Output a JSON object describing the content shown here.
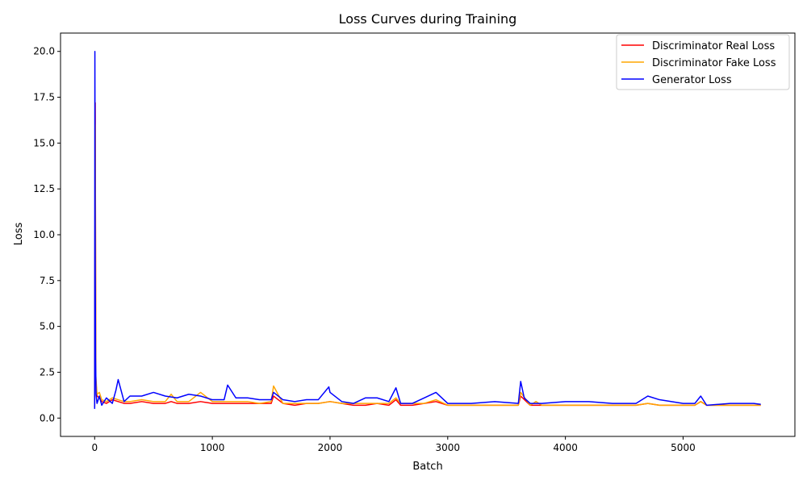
{
  "chart_data": {
    "type": "line",
    "title": "Loss Curves during Training",
    "xlabel": "Batch",
    "ylabel": "Loss",
    "xlim": [
      -290,
      5950
    ],
    "ylim": [
      -1.0,
      21.0
    ],
    "xticks": [
      0,
      1000,
      2000,
      3000,
      4000,
      5000
    ],
    "xtick_labels": [
      "0",
      "1000",
      "2000",
      "3000",
      "4000",
      "5000"
    ],
    "yticks": [
      0.0,
      2.5,
      5.0,
      7.5,
      10.0,
      12.5,
      15.0,
      17.5,
      20.0
    ],
    "ytick_labels": [
      "0.0",
      "2.5",
      "5.0",
      "7.5",
      "10.0",
      "12.5",
      "15.0",
      "17.5",
      "20.0"
    ],
    "grid": false,
    "legend_position": "top-right",
    "series": [
      {
        "name": "Discriminator Real Loss",
        "color": "#ff0000",
        "x": [
          0,
          5,
          10,
          20,
          40,
          60,
          100,
          150,
          200,
          250,
          300,
          400,
          500,
          600,
          650,
          700,
          800,
          900,
          1000,
          1100,
          1200,
          1300,
          1400,
          1500,
          1520,
          1600,
          1700,
          1800,
          1900,
          2000,
          2100,
          2200,
          2300,
          2400,
          2500,
          2560,
          2600,
          2700,
          2800,
          2900,
          3000,
          3200,
          3400,
          3600,
          3620,
          3700,
          3800,
          4000,
          4200,
          4400,
          4600,
          4700,
          4800,
          5000,
          5100,
          5150,
          5200,
          5400,
          5600,
          5660
        ],
        "y": [
          0.6,
          17.2,
          2.0,
          1.2,
          1.1,
          0.9,
          0.8,
          1.0,
          0.9,
          0.8,
          0.8,
          0.9,
          0.8,
          0.8,
          0.9,
          0.8,
          0.8,
          0.9,
          0.8,
          0.8,
          0.8,
          0.8,
          0.8,
          0.8,
          1.2,
          0.8,
          0.7,
          0.8,
          0.8,
          0.9,
          0.8,
          0.7,
          0.7,
          0.8,
          0.7,
          1.0,
          0.7,
          0.7,
          0.8,
          0.9,
          0.7,
          0.7,
          0.7,
          0.7,
          1.2,
          0.7,
          0.7,
          0.7,
          0.7,
          0.7,
          0.7,
          0.8,
          0.7,
          0.7,
          0.7,
          0.9,
          0.7,
          0.7,
          0.7,
          0.7
        ]
      },
      {
        "name": "Discriminator Fake Loss",
        "color": "#ffa500",
        "x": [
          0,
          5,
          10,
          20,
          40,
          60,
          100,
          150,
          200,
          250,
          300,
          400,
          500,
          600,
          650,
          700,
          800,
          900,
          1000,
          1100,
          1200,
          1300,
          1400,
          1500,
          1520,
          1600,
          1700,
          1800,
          1900,
          2000,
          2100,
          2200,
          2300,
          2400,
          2500,
          2560,
          2600,
          2700,
          2800,
          2900,
          3000,
          3200,
          3400,
          3600,
          3620,
          3700,
          3750,
          3800,
          4000,
          4200,
          4400,
          4600,
          4700,
          4800,
          5000,
          5100,
          5150,
          5200,
          5400,
          5600,
          5660
        ],
        "y": [
          0.7,
          16.0,
          2.3,
          1.3,
          1.4,
          1.0,
          0.9,
          1.1,
          1.0,
          0.9,
          0.9,
          1.0,
          0.9,
          0.9,
          1.3,
          0.9,
          0.9,
          1.4,
          0.9,
          0.9,
          0.9,
          0.9,
          0.8,
          0.9,
          1.75,
          0.8,
          0.8,
          0.8,
          0.8,
          0.9,
          0.8,
          0.8,
          0.8,
          0.8,
          0.8,
          1.1,
          0.8,
          0.8,
          0.8,
          1.0,
          0.7,
          0.7,
          0.7,
          0.7,
          1.4,
          0.7,
          0.9,
          0.7,
          0.7,
          0.7,
          0.7,
          0.7,
          0.8,
          0.7,
          0.7,
          0.7,
          0.9,
          0.7,
          0.7,
          0.7,
          0.7
        ]
      },
      {
        "name": "Generator Loss",
        "color": "#0000ff",
        "x": [
          0,
          2,
          5,
          8,
          12,
          20,
          40,
          60,
          100,
          150,
          180,
          200,
          250,
          300,
          400,
          500,
          600,
          700,
          800,
          900,
          1000,
          1100,
          1130,
          1200,
          1300,
          1400,
          1500,
          1520,
          1600,
          1700,
          1800,
          1900,
          1990,
          2000,
          2100,
          2200,
          2300,
          2400,
          2500,
          2560,
          2600,
          2700,
          2800,
          2900,
          3000,
          3200,
          3400,
          3600,
          3620,
          3650,
          3700,
          3800,
          4000,
          4200,
          4400,
          4600,
          4700,
          4800,
          5000,
          5100,
          5150,
          5200,
          5400,
          5600,
          5660
        ],
        "y": [
          0.5,
          20.0,
          8.0,
          3.3,
          1.3,
          0.8,
          1.2,
          0.7,
          1.1,
          0.8,
          1.5,
          2.1,
          0.9,
          1.2,
          1.2,
          1.4,
          1.2,
          1.1,
          1.3,
          1.2,
          1.0,
          1.0,
          1.8,
          1.1,
          1.1,
          1.0,
          1.0,
          1.4,
          1.0,
          0.9,
          1.0,
          1.0,
          1.7,
          1.4,
          0.9,
          0.8,
          1.1,
          1.1,
          0.9,
          1.65,
          0.8,
          0.8,
          1.1,
          1.4,
          0.8,
          0.8,
          0.9,
          0.8,
          2.0,
          1.1,
          0.8,
          0.8,
          0.9,
          0.9,
          0.8,
          0.8,
          1.2,
          1.0,
          0.8,
          0.8,
          1.2,
          0.7,
          0.8,
          0.8,
          0.75
        ]
      }
    ]
  }
}
